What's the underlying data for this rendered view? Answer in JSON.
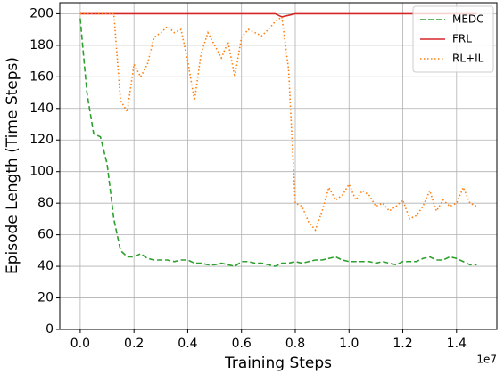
{
  "chart_data": {
    "type": "line",
    "xlabel": "Training Steps",
    "ylabel": "Episode Length (Time Steps)",
    "x_offset_label": "1e7",
    "x": [
      0,
      250000,
      500000,
      750000,
      1000000,
      1250000,
      1500000,
      1750000,
      2000000,
      2250000,
      2500000,
      2750000,
      3000000,
      3250000,
      3500000,
      3750000,
      4000000,
      4250000,
      4500000,
      4750000,
      5000000,
      5250000,
      5500000,
      5750000,
      6000000,
      6250000,
      6500000,
      6750000,
      7000000,
      7250000,
      7500000,
      7750000,
      8000000,
      8250000,
      8500000,
      8750000,
      9000000,
      9250000,
      9500000,
      9750000,
      10000000,
      10250000,
      10500000,
      10750000,
      11000000,
      11250000,
      11500000,
      11750000,
      12000000,
      12250000,
      12500000,
      12750000,
      13000000,
      13250000,
      13500000,
      13750000,
      14000000,
      14250000,
      14500000,
      14750000
    ],
    "series": [
      {
        "name": "MEDC",
        "color": "#2ca02c",
        "linestyle": "dashed",
        "values": [
          197,
          150,
          124,
          122,
          105,
          70,
          50,
          46,
          46,
          48,
          45,
          44,
          44,
          44,
          43,
          44,
          44,
          42,
          42,
          41,
          41,
          42,
          41,
          40,
          43,
          43,
          42,
          42,
          41,
          40,
          42,
          42,
          43,
          42,
          43,
          44,
          44,
          45,
          46,
          44,
          43,
          43,
          43,
          43,
          42,
          43,
          42,
          41,
          43,
          43,
          43,
          45,
          46,
          44,
          44,
          46,
          45,
          43,
          41,
          41
        ]
      },
      {
        "name": "FRL",
        "color": "#d62728",
        "linestyle": "solid",
        "values": [
          200,
          200,
          200,
          200,
          200,
          200,
          200,
          200,
          200,
          200,
          200,
          200,
          200,
          200,
          200,
          200,
          200,
          200,
          200,
          200,
          200,
          200,
          200,
          200,
          200,
          200,
          200,
          200,
          200,
          200,
          198,
          199,
          200,
          200,
          200,
          200,
          200,
          200,
          200,
          200,
          200,
          200,
          200,
          200,
          200,
          200,
          200,
          200,
          200,
          200,
          200,
          200,
          200,
          200,
          200,
          200,
          200,
          200,
          200,
          200
        ]
      },
      {
        "name": "RL+IL",
        "color": "#ff7f0e",
        "linestyle": "dotted",
        "values": [
          200,
          200,
          200,
          200,
          200,
          200,
          145,
          138,
          168,
          160,
          168,
          185,
          188,
          192,
          188,
          190,
          170,
          145,
          175,
          188,
          180,
          172,
          182,
          160,
          185,
          190,
          188,
          186,
          190,
          195,
          198,
          165,
          80,
          78,
          68,
          63,
          75,
          90,
          82,
          85,
          92,
          82,
          88,
          85,
          78,
          80,
          75,
          78,
          82,
          70,
          72,
          78,
          88,
          75,
          82,
          78,
          80,
          90,
          80,
          78
        ]
      }
    ],
    "xlim": [
      -760000,
      15500000
    ],
    "ylim": [
      0,
      207
    ],
    "xticks": [
      {
        "value": 0,
        "label": "0.0"
      },
      {
        "value": 2000000,
        "label": "0.2"
      },
      {
        "value": 4000000,
        "label": "0.4"
      },
      {
        "value": 6000000,
        "label": "0.6"
      },
      {
        "value": 8000000,
        "label": "0.8"
      },
      {
        "value": 10000000,
        "label": "1.0"
      },
      {
        "value": 12000000,
        "label": "1.2"
      },
      {
        "value": 14000000,
        "label": "1.4"
      }
    ],
    "yticks": [
      0,
      20,
      40,
      60,
      80,
      100,
      120,
      140,
      160,
      180,
      200
    ],
    "grid": true,
    "legend": "upper right"
  }
}
